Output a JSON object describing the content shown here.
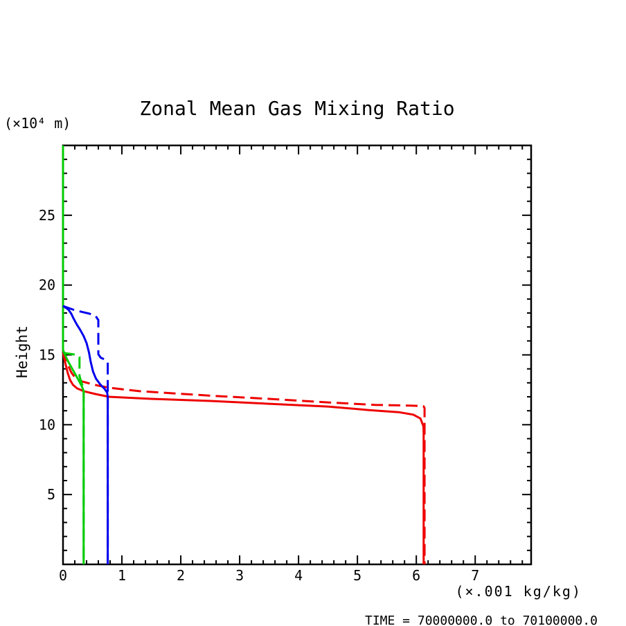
{
  "footer": {
    "time_range_label": "TIME = 70000000.0 to 70100000.0"
  },
  "chart_data": {
    "type": "line",
    "title": "Zonal Mean Gas Mixing Ratio",
    "ylabel": "Height",
    "y_unit_label": "(×10⁴ m)",
    "x_unit_label": "(×.001 kg/kg)",
    "xlim": [
      0,
      7.95
    ],
    "ylim": [
      0,
      30
    ],
    "x_major_tick_step": 1,
    "x_minor_tick_step": 0.2,
    "y_major_tick_step": 5,
    "y_minor_tick_step": 1,
    "x_tick_labels": [
      "0",
      "1",
      "2",
      "3",
      "4",
      "5",
      "6",
      "7"
    ],
    "y_tick_labels": [
      "5",
      "10",
      "15",
      "20",
      "25"
    ],
    "grid": false,
    "legend_position": "none",
    "axis_color": "#000000",
    "series": [
      {
        "name": "red-solid",
        "color": "#ee0000",
        "style": "solid",
        "points": [
          [
            0,
            15.15
          ],
          [
            0.04,
            14.4
          ],
          [
            0.08,
            13.7
          ],
          [
            0.12,
            13.2
          ],
          [
            0.17,
            12.85
          ],
          [
            0.24,
            12.6
          ],
          [
            0.35,
            12.4
          ],
          [
            0.55,
            12.2
          ],
          [
            0.78,
            12.0
          ],
          [
            1.5,
            11.85
          ],
          [
            2.5,
            11.7
          ],
          [
            3.5,
            11.5
          ],
          [
            4.5,
            11.3
          ],
          [
            5.2,
            11.05
          ],
          [
            5.7,
            10.9
          ],
          [
            5.95,
            10.72
          ],
          [
            6.07,
            10.45
          ],
          [
            6.12,
            9.9
          ],
          [
            6.125,
            9.4
          ],
          [
            6.125,
            0
          ]
        ]
      },
      {
        "name": "red-dashed",
        "color": "#ee0000",
        "style": "dashed",
        "points": [
          [
            0,
            15.35
          ],
          [
            0.04,
            14.75
          ],
          [
            0.09,
            14.2
          ],
          [
            0.14,
            13.75
          ],
          [
            0.2,
            13.4
          ],
          [
            0.28,
            13.15
          ],
          [
            0.45,
            12.95
          ],
          [
            0.6,
            12.8
          ],
          [
            0.78,
            12.65
          ],
          [
            1.3,
            12.4
          ],
          [
            2.5,
            12.08
          ],
          [
            3.5,
            11.85
          ],
          [
            4.5,
            11.6
          ],
          [
            5.3,
            11.42
          ],
          [
            5.9,
            11.37
          ],
          [
            6.12,
            11.33
          ],
          [
            6.14,
            11.2
          ],
          [
            6.14,
            0
          ]
        ]
      },
      {
        "name": "green-solid",
        "color": "#00cc00",
        "style": "solid",
        "points": [
          [
            0,
            30
          ],
          [
            0,
            15.35
          ],
          [
            0.04,
            14.95
          ],
          [
            0.09,
            14.5
          ],
          [
            0.15,
            14.05
          ],
          [
            0.21,
            13.6
          ],
          [
            0.27,
            13.15
          ],
          [
            0.32,
            12.75
          ],
          [
            0.35,
            12.4
          ],
          [
            0.35,
            0
          ]
        ]
      },
      {
        "name": "green-dashed",
        "color": "#00cc00",
        "style": "dashed",
        "points": [
          [
            0,
            15.15
          ],
          [
            0.24,
            15.0
          ],
          [
            0.28,
            14.85
          ],
          [
            0.28,
            13.5
          ],
          [
            0.31,
            13.05
          ],
          [
            0.34,
            12.7
          ],
          [
            0.35,
            12.55
          ],
          [
            0.35,
            0
          ]
        ]
      },
      {
        "name": "blue-dashed",
        "color": "#0000ee",
        "style": "dashed",
        "points": [
          [
            0,
            18.5
          ],
          [
            0.2,
            18.2
          ],
          [
            0.45,
            17.95
          ],
          [
            0.55,
            17.8
          ],
          [
            0.6,
            17.5
          ],
          [
            0.6,
            15.05
          ],
          [
            0.64,
            14.8
          ],
          [
            0.72,
            14.65
          ],
          [
            0.76,
            14.5
          ],
          [
            0.76,
            0
          ]
        ]
      },
      {
        "name": "blue-solid",
        "color": "#0000ee",
        "style": "solid",
        "points": [
          [
            0,
            18.5
          ],
          [
            0.09,
            18.25
          ],
          [
            0.14,
            17.95
          ],
          [
            0.18,
            17.6
          ],
          [
            0.23,
            17.2
          ],
          [
            0.29,
            16.8
          ],
          [
            0.35,
            16.35
          ],
          [
            0.4,
            15.85
          ],
          [
            0.44,
            15.2
          ],
          [
            0.47,
            14.5
          ],
          [
            0.51,
            13.8
          ],
          [
            0.56,
            13.3
          ],
          [
            0.63,
            12.9
          ],
          [
            0.7,
            12.6
          ],
          [
            0.75,
            12.3
          ],
          [
            0.76,
            12.0
          ],
          [
            0.76,
            0
          ]
        ]
      }
    ]
  }
}
